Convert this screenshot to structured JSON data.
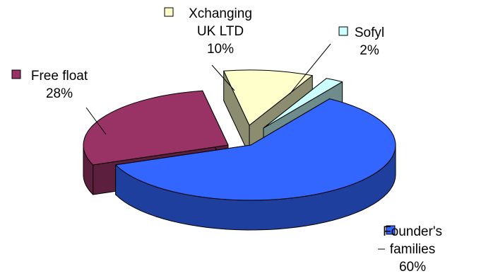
{
  "chart_data": {
    "type": "pie",
    "style": "3d-exploded",
    "slices": [
      {
        "label_lines": [
          "Founder's",
          "families"
        ],
        "pct_label": "60%",
        "value": 60,
        "color": "#3366FF",
        "side": "#1F3F9E"
      },
      {
        "label_lines": [
          "Free float"
        ],
        "pct_label": "28%",
        "value": 28,
        "color": "#993366",
        "side": "#5C1F3D"
      },
      {
        "label_lines": [
          "Xchanging",
          "UK LTD"
        ],
        "pct_label": "10%",
        "value": 10,
        "color": "#FFFFCC",
        "side": "#8C8C70"
      },
      {
        "label_lines": [
          "Sofyl"
        ],
        "pct_label": "2%",
        "value": 2,
        "color": "#CCFFFF",
        "side": "#6E8C8C"
      }
    ],
    "legend_markers": "inline-with-labels"
  }
}
